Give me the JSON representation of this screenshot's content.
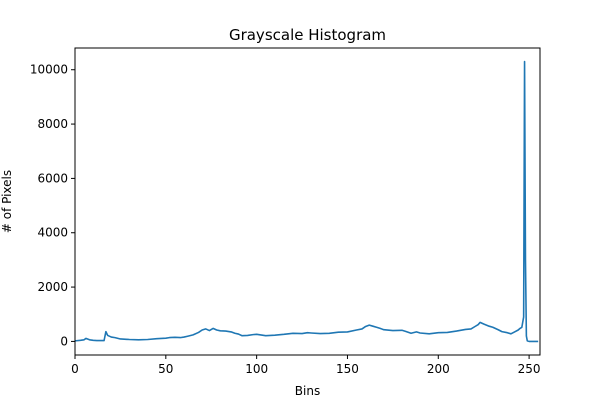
{
  "chart_data": {
    "type": "line",
    "title": "Grayscale Histogram",
    "xlabel": "Bins",
    "ylabel": "# of Pixels",
    "xlim": [
      0,
      256
    ],
    "ylim": [
      -500,
      10800
    ],
    "x_ticks": [
      0,
      50,
      100,
      150,
      200,
      250
    ],
    "y_ticks": [
      0,
      2000,
      4000,
      6000,
      8000,
      10000
    ],
    "grid": false,
    "legend": "none",
    "line_color": "#1f77b4",
    "series": [
      {
        "x": [
          0,
          3,
          5,
          6,
          8,
          10,
          12,
          15,
          16,
          17,
          18,
          20,
          22,
          25,
          30,
          35,
          40,
          45,
          50,
          52,
          55,
          58,
          60,
          62,
          65,
          68,
          70,
          72,
          74,
          76,
          78,
          80,
          83,
          86,
          88,
          90,
          92,
          95,
          98,
          100,
          105,
          110,
          115,
          120,
          125,
          128,
          130,
          135,
          140,
          145,
          150,
          155,
          158,
          160,
          162,
          164,
          166,
          168,
          170,
          175,
          180,
          182,
          185,
          188,
          190,
          195,
          200,
          205,
          210,
          215,
          218,
          220,
          222,
          223,
          225,
          228,
          230,
          233,
          235,
          238,
          240,
          242,
          244,
          245,
          246,
          247,
          247.5,
          248,
          248.5,
          249,
          250,
          252,
          255
        ],
        "y": [
          20,
          40,
          60,
          110,
          60,
          40,
          30,
          30,
          30,
          360,
          220,
          160,
          140,
          90,
          70,
          60,
          70,
          100,
          120,
          140,
          150,
          140,
          160,
          190,
          240,
          330,
          420,
          460,
          400,
          480,
          420,
          390,
          380,
          350,
          300,
          270,
          210,
          220,
          250,
          260,
          210,
          230,
          260,
          300,
          290,
          320,
          310,
          290,
          300,
          340,
          350,
          420,
          460,
          550,
          600,
          560,
          520,
          480,
          430,
          400,
          410,
          370,
          300,
          350,
          310,
          280,
          320,
          330,
          380,
          440,
          460,
          540,
          620,
          700,
          640,
          560,
          520,
          430,
          360,
          320,
          280,
          350,
          420,
          480,
          520,
          900,
          10300,
          3000,
          200,
          20,
          0,
          0,
          0
        ]
      }
    ]
  }
}
